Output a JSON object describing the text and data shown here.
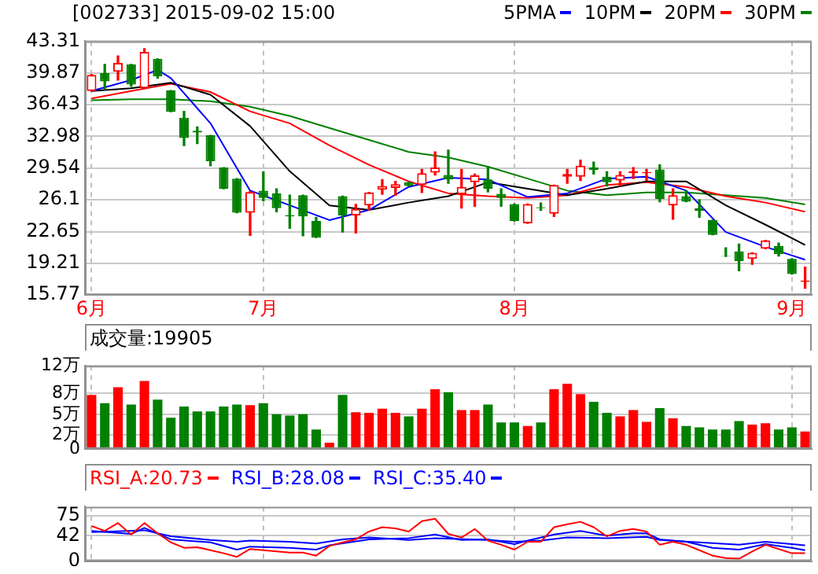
{
  "chart_data": [
    {
      "type": "candlestick",
      "title": "[002733] 2015-09-02 15:00",
      "legend": "top right",
      "grid": true,
      "categories": [
        "6月",
        null,
        null,
        null,
        null,
        null,
        null,
        null,
        null,
        null,
        null,
        null,
        null,
        "7月",
        null,
        null,
        null,
        null,
        null,
        null,
        null,
        null,
        null,
        null,
        null,
        null,
        null,
        null,
        null,
        null,
        null,
        null,
        "8月",
        null,
        null,
        null,
        null,
        null,
        null,
        null,
        null,
        null,
        null,
        null,
        null,
        null,
        null,
        null,
        null,
        null,
        null,
        null,
        null,
        "9月",
        null
      ],
      "ohlc": [
        [
          37.9,
          39.7,
          37.9,
          39.65
        ],
        [
          39.85,
          40.8,
          38.07,
          38.95
        ],
        [
          40.0,
          41.7,
          39.1,
          40.95
        ],
        [
          40.8,
          40.8,
          38.4,
          38.6
        ],
        [
          38.2,
          42.5,
          38.2,
          42.16
        ],
        [
          41.4,
          41.4,
          39.3,
          39.5
        ],
        [
          37.96,
          37.96,
          35.65,
          35.65
        ],
        [
          35.0,
          35.7,
          32.0,
          32.8
        ],
        [
          33.6,
          34.0,
          32.2,
          33.4
        ],
        [
          33.1,
          33.1,
          29.8,
          30.3
        ],
        [
          29.6,
          29.6,
          27.3,
          27.3
        ],
        [
          28.4,
          28.4,
          24.7,
          24.7
        ],
        [
          24.7,
          27.0,
          22.24,
          26.95
        ],
        [
          27.1,
          29.15,
          26.0,
          26.3
        ],
        [
          26.8,
          27.3,
          24.8,
          25.2
        ],
        [
          24.45,
          26.6,
          23.0,
          24.3
        ],
        [
          26.6,
          26.6,
          22.2,
          24.3
        ],
        [
          23.8,
          24.2,
          22.0,
          22.0
        ],
        null,
        [
          26.5,
          26.5,
          22.6,
          24.4
        ],
        [
          24.4,
          25.6,
          22.5,
          25.1
        ],
        [
          25.5,
          26.9,
          25.0,
          26.9
        ],
        [
          27.2,
          28.3,
          26.7,
          27.6
        ],
        [
          27.4,
          28.1,
          26.6,
          27.8
        ],
        [
          28.0,
          28.0,
          27.6,
          27.6
        ],
        [
          27.7,
          29.4,
          26.9,
          28.99
        ],
        [
          29.05,
          31.3,
          28.8,
          29.6
        ],
        [
          28.8,
          31.5,
          27.9,
          28.3
        ],
        [
          26.7,
          29.4,
          25.2,
          27.5
        ],
        [
          28.0,
          28.9,
          25.4,
          28.75
        ],
        [
          28.3,
          29.7,
          26.95,
          27.3
        ],
        [
          26.75,
          27.3,
          25.4,
          26.3
        ],
        [
          25.65,
          25.65,
          23.8,
          23.8
        ],
        [
          23.55,
          25.65,
          23.55,
          25.65
        ],
        [
          25.3,
          25.75,
          24.96,
          25.2
        ],
        [
          24.6,
          27.7,
          24.3,
          27.7
        ],
        [
          28.6,
          29.4,
          27.9,
          28.9
        ],
        [
          28.6,
          30.4,
          28.2,
          29.8
        ],
        [
          29.6,
          30.2,
          28.9,
          29.35
        ],
        [
          28.6,
          29.15,
          27.6,
          28.0
        ],
        [
          28.2,
          29.15,
          27.6,
          28.8
        ],
        [
          29.0,
          29.6,
          28.4,
          29.2
        ],
        [
          29.0,
          29.4,
          28.2,
          29.1
        ],
        [
          29.4,
          29.9,
          25.9,
          26.2
        ],
        [
          25.5,
          27.3,
          24.0,
          26.6
        ],
        [
          26.5,
          27.1,
          25.9,
          25.9
        ],
        [
          25.2,
          26.1,
          24.2,
          24.9
        ],
        [
          23.9,
          23.9,
          22.3,
          22.3
        ],
        [
          20.0,
          20.9,
          19.95,
          19.95
        ],
        [
          20.5,
          21.3,
          18.4,
          19.45
        ],
        [
          19.7,
          20.35,
          19.1,
          20.35
        ],
        [
          20.8,
          21.7,
          20.8,
          21.7
        ],
        [
          21.1,
          21.4,
          20.0,
          20.2
        ],
        [
          19.7,
          19.7,
          18.05,
          18.05
        ],
        [
          17.2,
          18.8,
          16.5,
          17.35
        ]
      ],
      "colors": [
        "#ff0000",
        "#008000",
        "#ff0000",
        "#008000",
        "#ff0000",
        "#008000",
        "#008000",
        "#008000",
        "#008000",
        "#008000",
        "#008000",
        "#008000",
        "#ff0000",
        "#008000",
        "#008000",
        "#008000",
        "#008000",
        "#008000",
        "#ff0000",
        "#008000",
        "#ff0000",
        "#ff0000",
        "#ff0000",
        "#ff0000",
        "#008000",
        "#ff0000",
        "#ff0000",
        "#008000",
        "#ff0000",
        "#ff0000",
        "#008000",
        "#008000",
        "#008000",
        "#ff0000",
        "#008000",
        "#ff0000",
        "#ff0000",
        "#ff0000",
        "#008000",
        "#008000",
        "#ff0000",
        "#ff0000",
        "#ff0000",
        "#008000",
        "#ff0000",
        "#008000",
        "#008000",
        "#008000",
        "#008000",
        "#008000",
        "#ff0000",
        "#ff0000",
        "#008000",
        "#008000",
        "#ff0000"
      ],
      "series": [
        {
          "type": "line",
          "name": "5PMA",
          "color": "#0000ff",
          "values": [
            37.9,
            null,
            null,
            39.1,
            null,
            40.2,
            39.3,
            null,
            null,
            34.4,
            null,
            null,
            27.1,
            null,
            null,
            25.5,
            null,
            null,
            23.9,
            null,
            null,
            25.0,
            null,
            null,
            27.5,
            null,
            null,
            28.5,
            null,
            null,
            28.3,
            null,
            null,
            26.4,
            null,
            null,
            26.8,
            null,
            null,
            28.4,
            null,
            null,
            28.6,
            null,
            null,
            27.1,
            null,
            null,
            22.6,
            null,
            null,
            21.0,
            null,
            null,
            19.6
          ]
        },
        {
          "type": "line",
          "name": "10PM",
          "color": "#000000",
          "values": [
            37.9,
            null,
            null,
            38.2,
            null,
            null,
            38.8,
            null,
            null,
            37.5,
            null,
            null,
            34.1,
            null,
            null,
            29.2,
            null,
            null,
            25.5,
            null,
            null,
            25.0,
            null,
            null,
            25.8,
            null,
            null,
            26.5,
            null,
            null,
            28.0,
            null,
            null,
            27.3,
            null,
            null,
            26.6,
            null,
            null,
            27.3,
            null,
            null,
            28.1,
            null,
            null,
            28.1,
            null,
            null,
            25.5,
            null,
            null,
            23.4,
            null,
            null,
            21.2
          ]
        },
        {
          "type": "line",
          "name": "20PM",
          "color": "#ff0000",
          "values": [
            37.1,
            null,
            null,
            37.9,
            null,
            null,
            38.7,
            null,
            null,
            37.8,
            null,
            null,
            35.7,
            null,
            null,
            34.4,
            null,
            null,
            32.0,
            null,
            null,
            29.9,
            null,
            null,
            28.1,
            null,
            null,
            26.8,
            null,
            null,
            26.5,
            null,
            null,
            26.3,
            null,
            null,
            26.6,
            null,
            null,
            27.7,
            null,
            null,
            28.0,
            null,
            null,
            27.5,
            null,
            null,
            26.5,
            null,
            null,
            25.8,
            null,
            null,
            24.8
          ]
        },
        {
          "type": "line",
          "name": "30PM",
          "color": "#008000",
          "values": [
            36.9,
            null,
            null,
            37.0,
            null,
            null,
            37.0,
            null,
            null,
            36.8,
            null,
            null,
            36.2,
            null,
            null,
            35.2,
            null,
            null,
            33.9,
            null,
            null,
            32.6,
            null,
            null,
            31.3,
            null,
            null,
            30.7,
            null,
            null,
            29.7,
            null,
            null,
            28.4,
            null,
            null,
            27.1,
            null,
            null,
            26.6,
            null,
            null,
            26.9,
            null,
            null,
            26.9,
            null,
            null,
            26.6,
            null,
            null,
            26.3,
            null,
            null,
            25.6
          ]
        }
      ],
      "ylim": [
        15.77,
        43.31
      ],
      "yticks": [
        15.77,
        19.21,
        22.65,
        26.1,
        29.54,
        32.98,
        36.43,
        39.87,
        43.31
      ]
    },
    {
      "type": "bar",
      "annotations": [
        "成交量:19905"
      ],
      "grid": true,
      "tick_labels": "y",
      "categories": [
        null,
        null,
        null,
        null,
        null,
        null,
        null,
        null,
        null,
        null,
        null,
        null,
        null,
        null,
        null,
        null,
        null,
        null,
        null,
        null,
        null,
        null,
        null,
        null,
        null,
        null,
        null,
        null,
        null,
        null,
        null,
        null,
        null,
        null,
        null,
        null,
        null,
        null,
        null,
        null,
        null,
        null,
        null,
        null,
        null,
        null,
        null,
        null,
        null,
        null,
        null,
        null,
        null,
        null,
        null
      ],
      "values": [
        7.8,
        6.6,
        8.9,
        6.4,
        9.8,
        7.1,
        4.5,
        6.1,
        5.4,
        5.4,
        6.1,
        6.4,
        6.3,
        6.6,
        5.0,
        4.8,
        5.0,
        2.8,
        0.9,
        7.8,
        5.3,
        5.2,
        5.8,
        5.2,
        4.7,
        5.8,
        8.6,
        8.2,
        5.6,
        5.6,
        6.4,
        3.8,
        3.8,
        3.3,
        3.8,
        8.6,
        9.4,
        7.9,
        6.8,
        5.2,
        4.7,
        5.6,
        3.9,
        5.9,
        4.4,
        3.3,
        3.1,
        2.8,
        2.8,
        4.0,
        3.5,
        3.7,
        2.8,
        3.1,
        2.5
      ],
      "colors": [
        "#ff0000",
        "#008000",
        "#ff0000",
        "#008000",
        "#ff0000",
        "#008000",
        "#008000",
        "#008000",
        "#008000",
        "#008000",
        "#008000",
        "#008000",
        "#ff0000",
        "#008000",
        "#008000",
        "#008000",
        "#008000",
        "#008000",
        "#ff0000",
        "#008000",
        "#ff0000",
        "#ff0000",
        "#ff0000",
        "#ff0000",
        "#008000",
        "#ff0000",
        "#ff0000",
        "#008000",
        "#ff0000",
        "#ff0000",
        "#008000",
        "#008000",
        "#008000",
        "#ff0000",
        "#008000",
        "#ff0000",
        "#ff0000",
        "#ff0000",
        "#008000",
        "#008000",
        "#ff0000",
        "#ff0000",
        "#ff0000",
        "#008000",
        "#ff0000",
        "#008000",
        "#008000",
        "#008000",
        "#008000",
        "#008000",
        "#ff0000",
        "#ff0000",
        "#008000",
        "#008000",
        "#ff0000"
      ],
      "ylim": [
        0,
        12
      ],
      "yticks": [
        0,
        {
          "value": 2,
          "label": "2万"
        },
        {
          "value": 5,
          "label": "5万"
        },
        {
          "value": 8,
          "label": "8万"
        },
        {
          "value": 12,
          "label": "12万"
        }
      ]
    },
    {
      "type": "line",
      "legend": "top left",
      "grid": true,
      "tick_labels": "y",
      "categories": [
        null,
        null,
        null,
        null,
        null,
        null,
        null,
        null,
        null,
        null,
        null,
        null,
        null,
        null,
        null,
        null,
        null,
        null,
        null,
        null,
        null,
        null,
        null,
        null,
        null,
        null,
        null,
        null,
        null,
        null,
        null,
        null,
        null,
        null,
        null,
        null,
        null,
        null,
        null,
        null,
        null,
        null,
        null,
        null,
        null,
        null,
        null,
        null,
        null,
        null,
        null,
        null,
        null,
        null,
        null
      ],
      "series": [
        {
          "name": "RSI_A:20.73",
          "color": "#ff0000",
          "values": [
            58,
            50,
            63,
            44,
            63,
            46,
            31,
            22,
            23,
            18,
            13,
            7,
            20,
            18,
            16,
            14,
            14,
            9,
            25,
            31,
            36,
            49,
            56,
            54,
            49,
            66,
            70,
            45,
            39,
            53,
            34,
            27,
            19,
            32,
            32,
            56,
            61,
            65,
            56,
            41,
            50,
            53,
            49,
            27,
            32,
            27,
            18,
            9,
            5,
            4,
            16,
            27,
            20,
            13,
            13
          ]
        },
        {
          "name": "RSI_B:28.08",
          "color": "#0000ff",
          "values": [
            50,
            null,
            null,
            45,
            55,
            null,
            36,
            null,
            null,
            31,
            null,
            19,
            24,
            null,
            null,
            22,
            null,
            19,
            26,
            null,
            null,
            36,
            null,
            null,
            38,
            null,
            44,
            null,
            35,
            null,
            36,
            null,
            28,
            34,
            null,
            44,
            null,
            50,
            null,
            42,
            null,
            46,
            46,
            36,
            null,
            32,
            null,
            22,
            null,
            19,
            null,
            28,
            null,
            22,
            18
          ]
        },
        {
          "name": "RSI_C:35.40",
          "color": "#0000ff",
          "values": [
            48,
            null,
            null,
            null,
            51,
            null,
            41,
            null,
            null,
            35,
            null,
            32,
            34,
            null,
            null,
            32,
            null,
            29,
            null,
            36,
            null,
            39,
            null,
            null,
            35,
            null,
            38,
            null,
            null,
            null,
            35,
            null,
            32,
            null,
            34,
            null,
            39,
            null,
            null,
            38,
            null,
            null,
            40,
            35,
            null,
            null,
            31,
            null,
            null,
            27,
            null,
            32,
            null,
            null,
            26
          ]
        }
      ],
      "ylim": [
        0,
        90
      ],
      "yticks": [
        0,
        42,
        75
      ]
    }
  ]
}
